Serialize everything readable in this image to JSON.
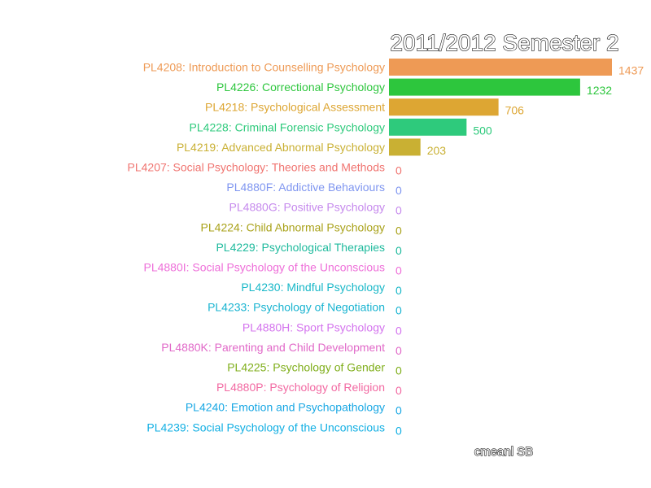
{
  "chart_data": {
    "type": "bar",
    "orientation": "horizontal",
    "title": "2011/2012 Semester 2",
    "footer": "cmeanl SB",
    "xlim": [
      0,
      1437
    ],
    "grid": false,
    "legend": "none",
    "categories": [
      "PL4208: Introduction to Counselling Psychology",
      "PL4226: Correctional Psychology",
      "PL4218: Psychological Assessment",
      "PL4228: Criminal Forensic Psychology",
      "PL4219: Advanced Abnormal Psychology",
      "PL4207: Social Psychology: Theories and Methods",
      "PL4880F: Addictive Behaviours",
      "PL4880G: Positive Psychology",
      "PL4224: Child Abnormal Psychology",
      "PL4229: Psychological Therapies",
      "PL4880I: Social Psychology of the Unconscious",
      "PL4230: Mindful Psychology",
      "PL4233: Psychology of Negotiation",
      "PL4880H: Sport Psychology",
      "PL4880K: Parenting and Child Development",
      "PL4225: Psychology of Gender",
      "PL4880P: Psychology of Religion",
      "PL4240: Emotion and Psychopathology",
      "PL4239: Social Psychology of the Unconscious"
    ],
    "values": [
      1437,
      1232,
      706,
      500,
      203,
      0,
      0,
      0,
      0,
      0,
      0,
      0,
      0,
      0,
      0,
      0,
      0,
      0,
      0
    ],
    "value_labels": [
      "1437",
      "1232",
      "706",
      "500",
      "203",
      "0",
      "0",
      "0",
      "0",
      "0",
      "0",
      "0",
      "0",
      "0",
      "0",
      "0",
      "0",
      "0",
      "0"
    ],
    "colors": [
      "#EE9A55",
      "#2DC63D",
      "#DDA633",
      "#2ECA7C",
      "#C9B033",
      "#F07470",
      "#7F96F0",
      "#C68AED",
      "#A9A21A",
      "#1EBA9D",
      "#EE6FD9",
      "#19B8C8",
      "#19B4D1",
      "#D474EE",
      "#E169C8",
      "#7FAE1A",
      "#F269A2",
      "#1AA8E4",
      "#12AFE3"
    ]
  }
}
